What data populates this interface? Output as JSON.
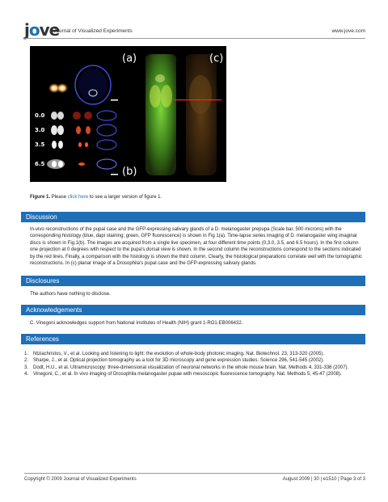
{
  "header": {
    "logo": "jove",
    "journal": "Journal of Visualized Experiments",
    "site": "www.jove.com"
  },
  "figure": {
    "panel_labels": [
      "(a)",
      "(b)",
      "(c)"
    ],
    "time_labels": [
      "0.0",
      "3.0",
      "3.5",
      "6.5"
    ]
  },
  "caption": {
    "label": "Figure 1.",
    "prefix": " Please ",
    "link": "click here",
    "suffix": " to see a larger version of figure 1."
  },
  "sections": {
    "discussion": {
      "title": "Discussion",
      "text": "In-vivo reconstructions of the pupal case and the GFP-expressing salivary glands of a D. melanogaster prepupa (Scale bar, 500 microns) with the corresponding histology (blue, dapi staining; green, GFP fluorescence) is shown in Fig 1(a). Time-lapse series imaging of D. melanogaster wing imaginal discs is shown in Fig.1(b). The images are acquired from a single live specimen, at four different time points (0,3.0, 3.5, and 6.5 hours). In the first column one projection at 0 degrees with respect to the pupa's dorsal view is shown. In the second column the reconstructions correspond to the sections indicated by the red lines. Finally, a comparison with the histology is shown the third column. Clearly, the histological preparations correlate well with the tomographic reconstructions. In (c) planar image of a Drosophila's pupal case and the GFP-expressing salivary glands."
    },
    "disclosures": {
      "title": "Disclosures",
      "text": "The authors have nothing to disclose."
    },
    "acknowledgements": {
      "title": "Acknowledgements",
      "text": "C. Vinegoni acknowledges support from National Institutes of Health (NIH) grant 1-RO1-EB006432."
    },
    "references": {
      "title": "References",
      "items": [
        {
          "num": "1.",
          "text": "Ntziachristos, V., et al. Looking and listening to light: the evolution of whole-body photonic imaging. Nat. Biotechnol. 23, 313-320 (2005)."
        },
        {
          "num": "2.",
          "text": "Sharpe, J., et al. Optical projection tomography as a tool for 3D microscopy and gene expression studies. Science 296, 541-545 (2002)."
        },
        {
          "num": "3.",
          "text": "Dodt, H.U., et al. Ultramicroscopy: three-dimensional visualization of neuronal networks in the whole mouse brain. Nat. Methods 4, 331-336 (2007)."
        },
        {
          "num": "4.",
          "text": "Vinegoni, C., et al. In vivo imaging of Drosophila melanogaster pupae with mesoscopic fluorescence tomography. Nat. Methods 5, 45-47 (2008)."
        }
      ]
    }
  },
  "footer": {
    "copyright": "Copyright © 2009  Journal of Visualized Experiments",
    "pageinfo": "August 2009 |  30  | e1510 | Page 3 of 3"
  },
  "colors": {
    "accent": "#1e6fb8",
    "section_bar": "#1e6fb8"
  }
}
